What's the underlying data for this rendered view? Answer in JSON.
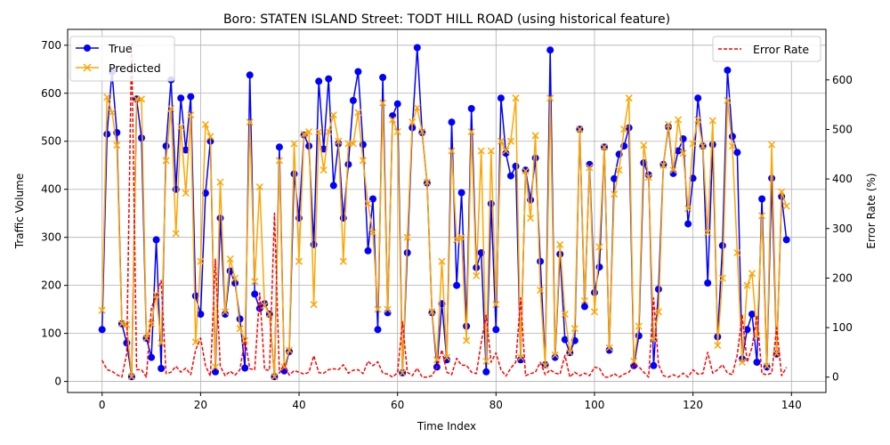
{
  "chart_data": {
    "type": "line",
    "title": "Boro: STATEN ISLAND Street: TODT HILL ROAD (using historical feature)",
    "xlabel": "Time Index",
    "ylabel": "Traffic Volume",
    "y2label": "Error Rate (%)",
    "xlim": [
      -7,
      147
    ],
    "ylim": [
      -23,
      733
    ],
    "y2lim": [
      -31,
      702
    ],
    "xticks": [
      0,
      20,
      40,
      60,
      80,
      100,
      120,
      140
    ],
    "yticks": [
      0,
      100,
      200,
      300,
      400,
      500,
      600,
      700
    ],
    "y2ticks": [
      0,
      100,
      200,
      300,
      400,
      500,
      600
    ],
    "grid": true,
    "legend_left_position": "upper left",
    "legend_right_position": "upper right",
    "series": [
      {
        "name": "True",
        "axis": "left",
        "color": "#0000ff",
        "marker": "circle",
        "values": [
          108,
          515,
          645,
          518,
          120,
          80,
          10,
          588,
          507,
          90,
          50,
          295,
          27,
          490,
          628,
          400,
          590,
          482,
          593,
          178,
          140,
          392,
          500,
          20,
          340,
          140,
          230,
          205,
          130,
          28,
          638,
          182,
          152,
          162,
          140,
          10,
          488,
          22,
          62,
          432,
          340,
          513,
          490,
          285,
          625,
          484,
          630,
          408,
          495,
          340,
          452,
          585,
          645,
          493,
          272,
          380,
          108,
          633,
          143,
          553,
          578,
          18,
          268,
          528,
          695,
          518,
          413,
          143,
          30,
          162,
          45,
          540,
          200,
          393,
          115,
          568,
          237,
          268,
          20,
          370,
          108,
          590,
          475,
          428,
          448,
          45,
          440,
          378,
          465,
          250,
          35,
          690,
          50,
          265,
          87,
          60,
          85,
          525,
          156,
          452,
          185,
          238,
          488,
          65,
          422,
          473,
          490,
          528,
          33,
          95,
          455,
          430,
          33,
          192,
          452,
          530,
          433,
          480,
          505,
          328,
          423,
          590,
          490,
          205,
          493,
          93,
          283,
          648,
          510,
          477,
          47,
          108,
          140,
          40,
          380,
          30,
          423,
          57,
          385,
          295
        ]
      },
      {
        "name": "Predicted",
        "axis": "left",
        "color": "#ffa500",
        "marker": "x",
        "values": [
          148,
          592,
          560,
          492,
          120,
          118,
          10,
          588,
          588,
          90,
          120,
          180,
          80,
          460,
          568,
          308,
          530,
          392,
          555,
          82,
          250,
          535,
          510,
          30,
          415,
          145,
          255,
          215,
          110,
          85,
          540,
          208,
          405,
          158,
          140,
          10,
          460,
          30,
          65,
          495,
          250,
          515,
          520,
          160,
          520,
          440,
          520,
          555,
          500,
          250,
          495,
          495,
          560,
          460,
          370,
          310,
          150,
          580,
          150,
          545,
          520,
          18,
          300,
          540,
          570,
          520,
          415,
          145,
          45,
          250,
          50,
          480,
          295,
          300,
          85,
          520,
          220,
          480,
          42,
          480,
          160,
          500,
          480,
          500,
          590,
          50,
          438,
          340,
          512,
          190,
          33,
          590,
          55,
          285,
          140,
          60,
          110,
          525,
          168,
          445,
          145,
          280,
          488,
          70,
          390,
          440,
          525,
          590,
          42,
          115,
          492,
          425,
          88,
          145,
          450,
          535,
          440,
          545,
          475,
          360,
          495,
          545,
          490,
          310,
          543,
          75,
          215,
          585,
          490,
          268,
          40,
          200,
          225,
          95,
          345,
          32,
          493,
          58,
          395,
          365
        ]
      },
      {
        "name": "Error Rate",
        "axis": "right",
        "color": "#ff0000",
        "marker": "none",
        "dashed": true,
        "values": [
          34,
          15,
          12,
          5,
          0,
          48,
          675,
          15,
          15,
          0,
          140,
          165,
          195,
          7,
          10,
          22,
          10,
          18,
          5,
          55,
          79,
          23,
          2,
          238,
          22,
          3,
          12,
          4,
          15,
          78,
          17,
          15,
          170,
          15,
          14,
          331,
          8,
          27,
          4,
          13,
          10,
          6,
          10,
          43,
          9,
          8,
          15,
          17,
          15,
          25,
          8,
          14,
          15,
          7,
          32,
          23,
          31,
          8,
          6,
          0,
          9,
          112,
          10,
          3,
          18,
          0,
          0,
          3,
          20,
          55,
          10,
          5,
          38,
          24,
          24,
          10,
          7,
          70,
          125,
          30,
          49,
          15,
          2,
          18,
          30,
          160,
          3,
          7,
          10,
          30,
          5,
          15,
          8,
          6,
          44,
          0,
          10,
          3,
          8,
          3,
          20,
          18,
          0,
          0,
          7,
          0,
          6,
          10,
          25,
          21,
          10,
          0,
          160,
          25,
          3,
          0,
          5,
          0,
          8,
          0,
          15,
          6,
          7,
          50,
          8,
          15,
          25,
          8,
          5,
          45,
          125,
          30,
          60,
          125,
          7,
          5,
          8,
          100,
          3,
          20
        ]
      }
    ]
  }
}
